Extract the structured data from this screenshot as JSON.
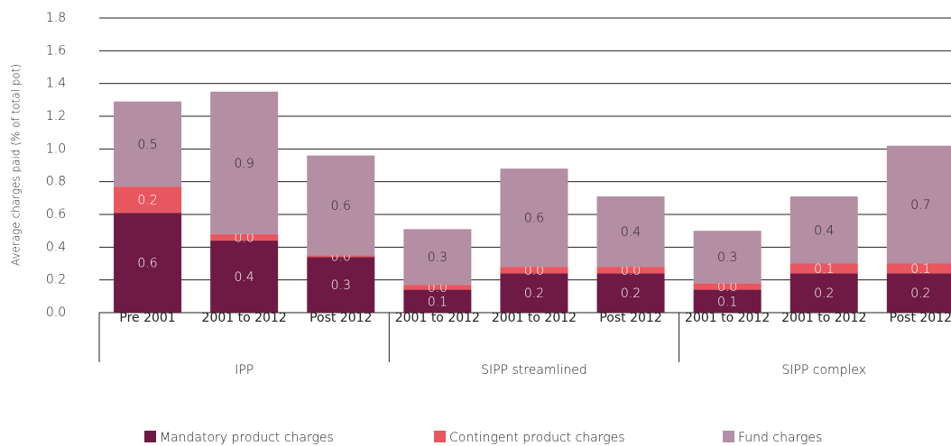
{
  "chart_data": {
    "type": "stacked-bar",
    "y_label": "Average charges paid (% of total pot)",
    "groups": [
      {
        "name": "IPP",
        "categories": [
          "Pre 2001",
          "2001 to 2012",
          "Post 2012"
        ]
      },
      {
        "name": "SIPP streamlined",
        "categories": [
          "2001 to 2012",
          "2001 to 2012",
          "Post 2012"
        ]
      },
      {
        "name": "SIPP complex",
        "categories": [
          "2001 to 2012",
          "2001 to 2012",
          "Post 2012"
        ]
      }
    ],
    "series": [
      {
        "name": "Mandatory product charges",
        "color": "#6e1a44",
        "values": [
          0.61,
          0.44,
          0.34,
          0.14,
          0.24,
          0.24,
          0.14,
          0.24,
          0.24
        ],
        "value_labels": [
          "0.6",
          "0.4",
          "0.3",
          "0.1",
          "0.2",
          "0.2",
          "0.1",
          "0.2",
          "0.2"
        ]
      },
      {
        "name": "Contingent product charges",
        "color": "#e8575f",
        "values": [
          0.16,
          0.04,
          0.01,
          0.03,
          0.04,
          0.04,
          0.04,
          0.06,
          0.06
        ],
        "value_labels": [
          "0.2",
          "0.0",
          "0.0",
          "0.0",
          "0.0",
          "0.0",
          "0.0",
          "0.1",
          "0.1"
        ]
      },
      {
        "name": "Fund charges",
        "color": "#b48ea3",
        "values": [
          0.52,
          0.87,
          0.61,
          0.34,
          0.6,
          0.43,
          0.32,
          0.41,
          0.72
        ],
        "value_labels": [
          "0.5",
          "0.9",
          "0.6",
          "0.3",
          "0.6",
          "0.4",
          "0.3",
          "0.4",
          "0.7"
        ]
      }
    ],
    "ylim": [
      0,
      1.8
    ],
    "yticks": [
      {
        "value": 0,
        "label": "0.0"
      },
      0.2,
      0.4,
      0.6,
      0.8,
      {
        "value": 1,
        "label": "1.0"
      },
      1.2,
      1.4,
      1.6,
      1.8
    ],
    "grid": true
  }
}
